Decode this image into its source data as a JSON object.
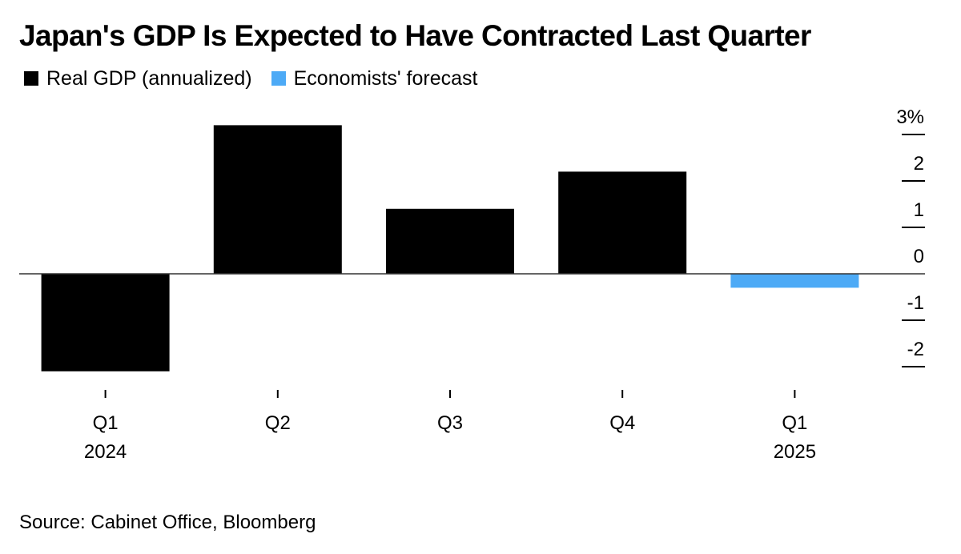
{
  "title": "Japan's GDP Is Expected to Have Contracted Last Quarter",
  "legend": [
    {
      "label": "Real GDP (annualized)",
      "color": "#000000"
    },
    {
      "label": "Economists' forecast",
      "color": "#4daaf6"
    }
  ],
  "source": "Source: Cabinet Office, Bloomberg",
  "chart_data": {
    "type": "bar",
    "categories": [
      "Q1 2024",
      "Q2",
      "Q3",
      "Q4",
      "Q1 2025"
    ],
    "category_labels": [
      {
        "quarter": "Q1",
        "year": "2024"
      },
      {
        "quarter": "Q2",
        "year": ""
      },
      {
        "quarter": "Q3",
        "year": ""
      },
      {
        "quarter": "Q4",
        "year": ""
      },
      {
        "quarter": "Q1",
        "year": "2025"
      }
    ],
    "series": [
      {
        "name": "Real GDP (annualized)",
        "values": [
          -2.1,
          3.2,
          1.4,
          2.2,
          null
        ],
        "color": "#000000"
      },
      {
        "name": "Economists' forecast",
        "values": [
          null,
          null,
          null,
          null,
          -0.3
        ],
        "color": "#4daaf6"
      }
    ],
    "y_ticks": [
      "3%",
      "2",
      "1",
      "0",
      "-1",
      "-2"
    ],
    "y_tick_values": [
      3,
      2,
      1,
      0,
      -1,
      -2
    ],
    "ylim": [
      -2.2,
      3.2
    ],
    "y_axis_position": "right",
    "grid": false,
    "legend_position": "top-left"
  }
}
